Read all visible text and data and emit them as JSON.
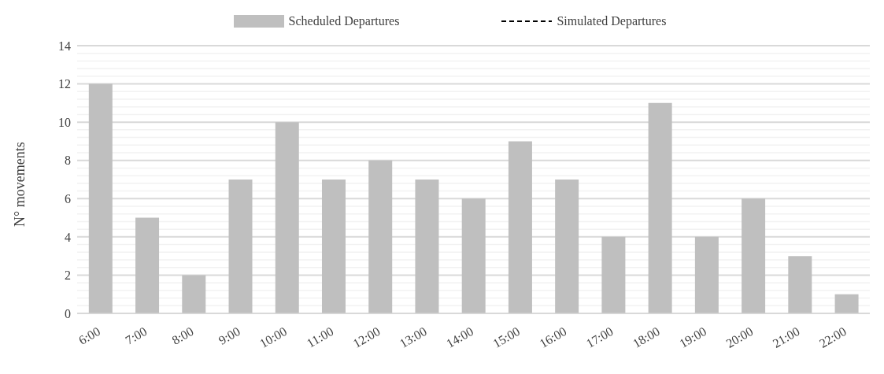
{
  "chart_data": {
    "type": "bar",
    "ylabel": "N° movements",
    "categories": [
      "6:00",
      "7:00",
      "8:00",
      "9:00",
      "10:00",
      "11:00",
      "12:00",
      "13:00",
      "14:00",
      "15:00",
      "16:00",
      "17:00",
      "18:00",
      "19:00",
      "20:00",
      "21:00",
      "22:00"
    ],
    "series": [
      {
        "name": "Scheduled Departures",
        "color": "#bfbfbf",
        "values": [
          12,
          5,
          2,
          7,
          10,
          7,
          8,
          7,
          6,
          9,
          7,
          4,
          11,
          4,
          6,
          3,
          1
        ]
      },
      {
        "name": "Simulated Departures",
        "type": "line",
        "color": "#000000",
        "line_style": "dashed",
        "values": [
          null,
          null,
          null,
          null,
          null,
          null,
          null,
          null,
          null,
          null,
          null,
          null,
          null,
          null,
          null,
          null,
          null
        ]
      }
    ],
    "ylim": [
      0,
      14
    ],
    "yticks": [
      0,
      {
        "value": 0.4,
        "label": null
      },
      {
        "value": 0.8,
        "label": null
      },
      {
        "value": 1.2,
        "label": null
      },
      {
        "value": 1.6,
        "label": null
      },
      2,
      {
        "value": 2.4,
        "label": null
      },
      {
        "value": 2.8,
        "label": null
      },
      {
        "value": 3.2,
        "label": null
      },
      {
        "value": 3.6,
        "label": null
      },
      4,
      {
        "value": 4.4,
        "label": null
      },
      {
        "value": 4.8,
        "label": null
      },
      {
        "value": 5.2,
        "label": null
      },
      {
        "value": 5.6,
        "label": null
      },
      6,
      {
        "value": 6.4,
        "label": null
      },
      {
        "value": 6.8,
        "label": null
      },
      {
        "value": 7.2,
        "label": null
      },
      {
        "value": 7.6,
        "label": null
      },
      8,
      {
        "value": 8.4,
        "label": null
      },
      {
        "value": 8.8,
        "label": null
      },
      {
        "value": 9.2,
        "label": null
      },
      {
        "value": 9.6,
        "label": null
      },
      10,
      {
        "value": 10.4,
        "label": null
      },
      {
        "value": 10.8,
        "label": null
      },
      {
        "value": 11.2,
        "label": null
      },
      {
        "value": 11.6,
        "label": null
      },
      12,
      {
        "value": 12.4,
        "label": null
      },
      {
        "value": 12.8,
        "label": null
      },
      {
        "value": 13.2,
        "label": null
      },
      {
        "value": 13.6,
        "label": null
      },
      14
    ],
    "grid": "y",
    "legend": "top"
  }
}
